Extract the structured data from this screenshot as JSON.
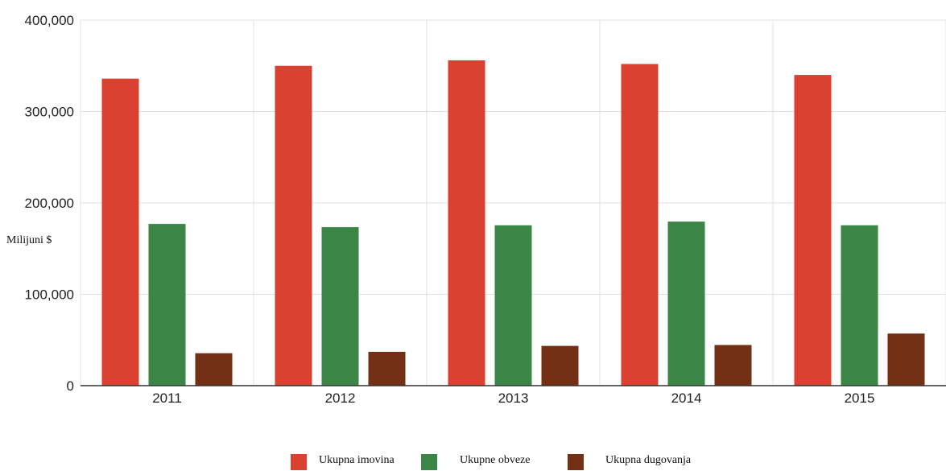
{
  "chart_data": {
    "type": "bar",
    "categories": [
      "2011",
      "2012",
      "2013",
      "2014",
      "2015"
    ],
    "series": [
      {
        "name": "Ukupna imovina",
        "color": "#db4130",
        "values": [
          336000,
          350000,
          356000,
          352000,
          340000
        ]
      },
      {
        "name": "Ukupne obveze",
        "color": "#3b8646",
        "values": [
          177000,
          173500,
          175500,
          179500,
          175500
        ]
      },
      {
        "name": "Ukupna dugovanja",
        "color": "#733015",
        "values": [
          35500,
          37000,
          43500,
          44500,
          57000
        ]
      }
    ],
    "yticks": [
      "0",
      "100,000",
      "200,000",
      "300,000",
      "400,000"
    ],
    "ylim": [
      0,
      400000
    ],
    "ylabel": "Milijuni $",
    "xlabel": "",
    "title": "",
    "grid": true,
    "legend_position": "bottom-center"
  }
}
